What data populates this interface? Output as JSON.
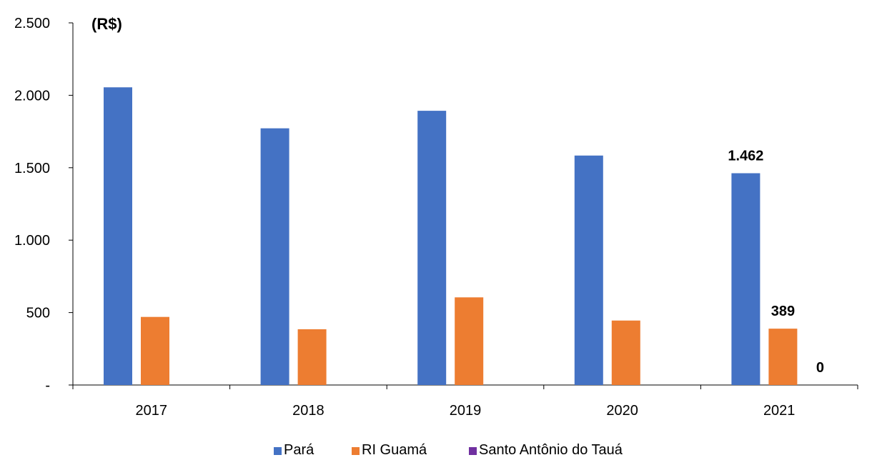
{
  "chart_data": {
    "type": "bar",
    "unit_label": "(R$)",
    "categories": [
      "2017",
      "2018",
      "2019",
      "2020",
      "2021"
    ],
    "series": [
      {
        "name": "Pará",
        "color": "#4472C4",
        "values": [
          2055,
          1772,
          1893,
          1584,
          1462
        ]
      },
      {
        "name": "RI Guamá",
        "color": "#ED7D31",
        "values": [
          470,
          385,
          605,
          445,
          389
        ]
      },
      {
        "name": "Santo Antônio do Tauá",
        "color": "#7030A0",
        "values": [
          0,
          0,
          0,
          0,
          0
        ]
      }
    ],
    "ylim": [
      0,
      2500
    ],
    "y_ticks": [
      {
        "value": 0,
        "label": "-"
      },
      {
        "value": 500,
        "label": "500"
      },
      {
        "value": 1000,
        "label": "1.000"
      },
      {
        "value": 1500,
        "label": "1.500"
      },
      {
        "value": 2000,
        "label": "2.000"
      },
      {
        "value": 2500,
        "label": "2.500"
      }
    ],
    "data_labels": [
      {
        "series": 0,
        "category": 4,
        "text": "1.462"
      },
      {
        "series": 1,
        "category": 4,
        "text": "389"
      },
      {
        "series": 2,
        "category": 4,
        "text": "0"
      }
    ],
    "legend_position": "bottom",
    "grid": false
  }
}
